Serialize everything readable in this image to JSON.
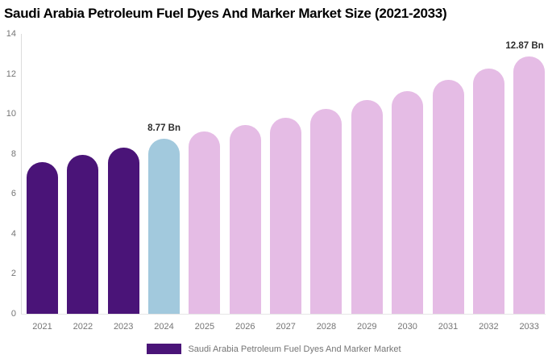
{
  "header": {
    "title": "Saudi Arabia Petroleum Fuel Dyes And Marker Market Size (2021-2033)"
  },
  "chart_data": {
    "type": "bar",
    "title": "Saudi Arabia Petroleum Fuel Dyes And Marker Market Size (2021-2033)",
    "categories": [
      "2021",
      "2022",
      "2023",
      "2024",
      "2025",
      "2026",
      "2027",
      "2028",
      "2029",
      "2030",
      "2031",
      "2032",
      "2033"
    ],
    "values": [
      7.6,
      7.95,
      8.3,
      8.77,
      9.1,
      9.45,
      9.8,
      10.25,
      10.7,
      11.15,
      11.7,
      12.25,
      12.87
    ],
    "unit": "Bn",
    "bar_colors": [
      "#4a1478",
      "#4a1478",
      "#4a1478",
      "#a2c9dd",
      "#e5bce5",
      "#e5bce5",
      "#e5bce5",
      "#e5bce5",
      "#e5bce5",
      "#e5bce5",
      "#e5bce5",
      "#e5bce5",
      "#e5bce5"
    ],
    "ylim": [
      0,
      14
    ],
    "yticks": [
      0,
      2,
      4,
      6,
      8,
      10,
      12,
      14
    ],
    "grid": false,
    "annotations": [
      {
        "category": "2024",
        "text": "8.77 Bn"
      },
      {
        "category": "2033",
        "text": "12.87 Bn"
      }
    ],
    "legend": {
      "position": "bottom",
      "items": [
        {
          "label": "Saudi Arabia Petroleum Fuel Dyes And Marker Market",
          "color": "#4a1478"
        }
      ]
    },
    "colors": {
      "historical": "#4a1478",
      "current_year": "#a2c9dd",
      "forecast": "#e5bce5",
      "axis_line": "#dcdcdc",
      "tick_label": "#757575",
      "value_label": "#2d2d2d",
      "title": "#000000",
      "background": "#ffffff"
    }
  }
}
